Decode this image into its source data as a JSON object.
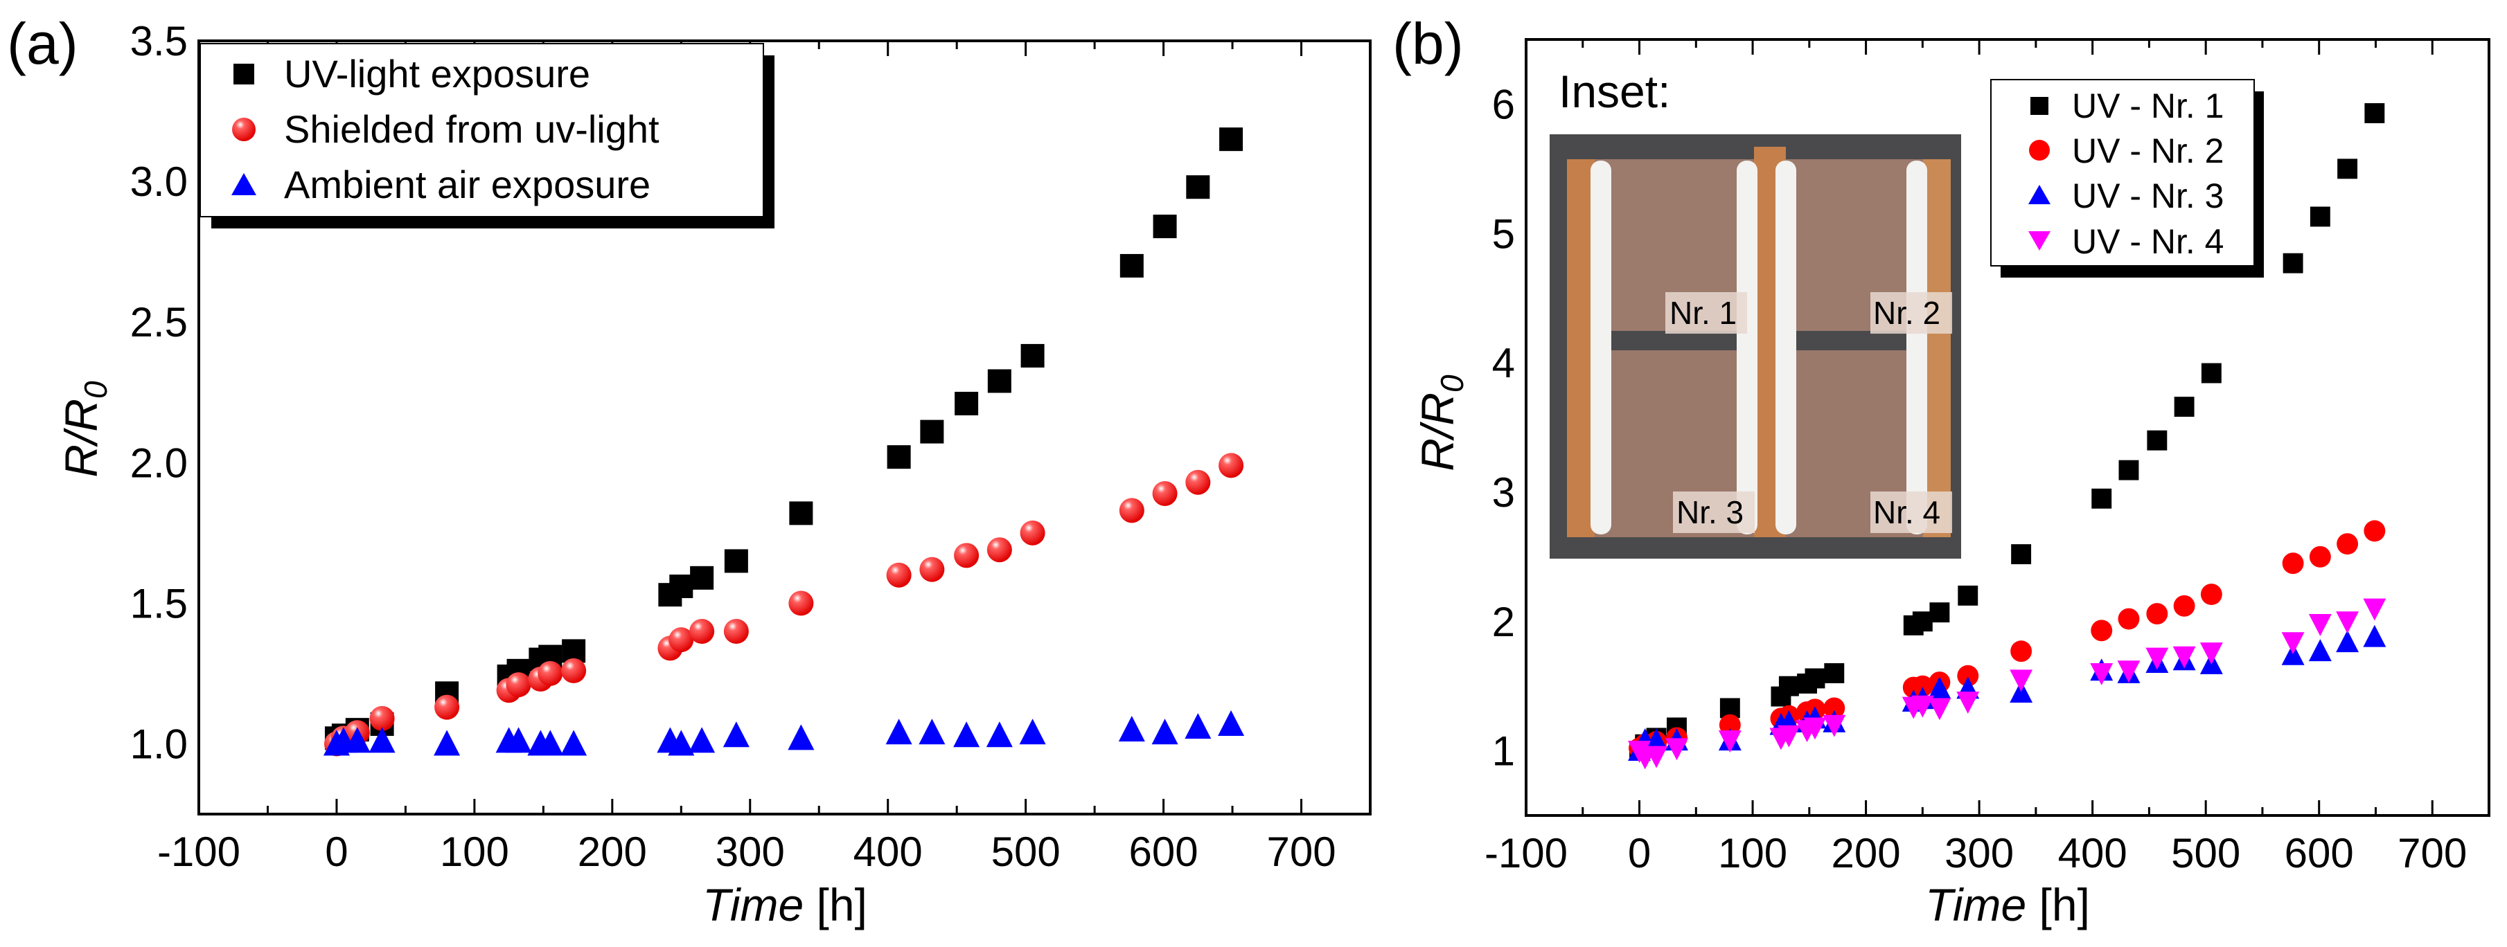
{
  "chart_data": [
    {
      "type": "scatter",
      "panel_label": "(a)",
      "xlabel_italic": "Time",
      "xlabel_unit": " [h]",
      "ylabel_main": "R/R",
      "ylabel_sub": "0",
      "xlim": [
        -100,
        750
      ],
      "ylim": [
        0.75,
        3.5
      ],
      "xticks": [
        -100,
        0,
        100,
        200,
        300,
        400,
        500,
        600,
        700
      ],
      "yticks": [
        "1.0",
        "1.5",
        "2.0",
        "2.5",
        "3.0",
        "3.5"
      ],
      "legend_position": "top-left",
      "x": [
        0,
        5,
        15,
        33,
        80,
        125,
        132,
        148,
        155,
        172,
        242,
        250,
        265,
        290,
        337,
        408,
        432,
        457,
        481,
        505,
        577,
        601,
        625,
        649
      ],
      "series": [
        {
          "name": "UV-light exposure",
          "marker": "square",
          "color": "#000000",
          "values": [
            1.02,
            1.03,
            1.05,
            1.07,
            1.18,
            1.24,
            1.26,
            1.3,
            1.31,
            1.33,
            1.53,
            1.56,
            1.59,
            1.65,
            1.82,
            2.02,
            2.11,
            2.21,
            2.29,
            2.38,
            2.7,
            2.84,
            2.98,
            3.15
          ]
        },
        {
          "name": "Shielded from uv-light",
          "marker": "sphere",
          "color": "#ff0000",
          "values": [
            1.0,
            1.02,
            1.04,
            1.09,
            1.13,
            1.19,
            1.21,
            1.23,
            1.25,
            1.26,
            1.34,
            1.37,
            1.4,
            1.4,
            1.5,
            1.6,
            1.62,
            1.67,
            1.69,
            1.75,
            1.83,
            1.89,
            1.93,
            1.99
          ]
        },
        {
          "name": "Ambient air exposure",
          "marker": "triangle-up",
          "color": "#0000ff",
          "values": [
            1.0,
            1.01,
            1.01,
            1.01,
            1.0,
            1.01,
            1.01,
            1.0,
            1.0,
            1.0,
            1.01,
            1.0,
            1.01,
            1.03,
            1.02,
            1.04,
            1.04,
            1.03,
            1.03,
            1.04,
            1.05,
            1.04,
            1.06,
            1.07
          ]
        }
      ]
    },
    {
      "type": "scatter",
      "panel_label": "(b)",
      "xlabel_italic": "Time",
      "xlabel_unit": " [h]",
      "ylabel_main": "R/R",
      "ylabel_sub": "0",
      "xlim": [
        -100,
        750
      ],
      "ylim": [
        0.5,
        6.5
      ],
      "xticks": [
        -100,
        0,
        100,
        200,
        300,
        400,
        500,
        600,
        700
      ],
      "yticks": [
        "1",
        "2",
        "3",
        "4",
        "5",
        "6"
      ],
      "legend_position": "top-right",
      "inset": {
        "title": "Inset:",
        "labels": [
          "Nr. 1",
          "Nr. 2",
          "Nr. 3",
          "Nr. 4"
        ]
      },
      "x": [
        0,
        5,
        15,
        33,
        80,
        125,
        132,
        148,
        155,
        172,
        242,
        250,
        265,
        290,
        337,
        408,
        432,
        457,
        481,
        505,
        577,
        601,
        625,
        649
      ],
      "series": [
        {
          "name": "UV - Nr. 1",
          "marker": "square",
          "color": "#000000",
          "values": [
            1.0,
            1.05,
            1.1,
            1.18,
            1.33,
            1.42,
            1.5,
            1.52,
            1.56,
            1.6,
            1.97,
            2.0,
            2.07,
            2.2,
            2.52,
            2.95,
            3.17,
            3.4,
            3.66,
            3.92,
            4.77,
            5.13,
            5.5,
            5.93
          ]
        },
        {
          "name": "UV - Nr. 2",
          "marker": "circle",
          "color": "#ff0000",
          "values": [
            1.02,
            1.05,
            1.07,
            1.1,
            1.2,
            1.25,
            1.27,
            1.3,
            1.32,
            1.33,
            1.49,
            1.5,
            1.53,
            1.58,
            1.77,
            1.93,
            2.02,
            2.06,
            2.12,
            2.21,
            2.45,
            2.5,
            2.6,
            2.7
          ]
        },
        {
          "name": "UV - Nr. 3",
          "marker": "triangle-up",
          "color": "#0000ff",
          "values": [
            1.0,
            1.08,
            1.08,
            1.08,
            1.08,
            1.2,
            1.22,
            1.22,
            1.25,
            1.22,
            1.38,
            1.4,
            1.48,
            1.48,
            1.45,
            1.62,
            1.6,
            1.68,
            1.7,
            1.67,
            1.74,
            1.77,
            1.84,
            1.88
          ]
        },
        {
          "name": "UV - Nr. 4",
          "marker": "triangle-down",
          "color": "#ff00ff",
          "values": [
            1.0,
            0.95,
            0.96,
            1.02,
            1.08,
            1.1,
            1.12,
            1.16,
            1.18,
            1.2,
            1.34,
            1.35,
            1.33,
            1.38,
            1.55,
            1.6,
            1.62,
            1.72,
            1.73,
            1.76,
            1.84,
            1.98,
            2.0,
            2.1
          ]
        }
      ]
    }
  ]
}
